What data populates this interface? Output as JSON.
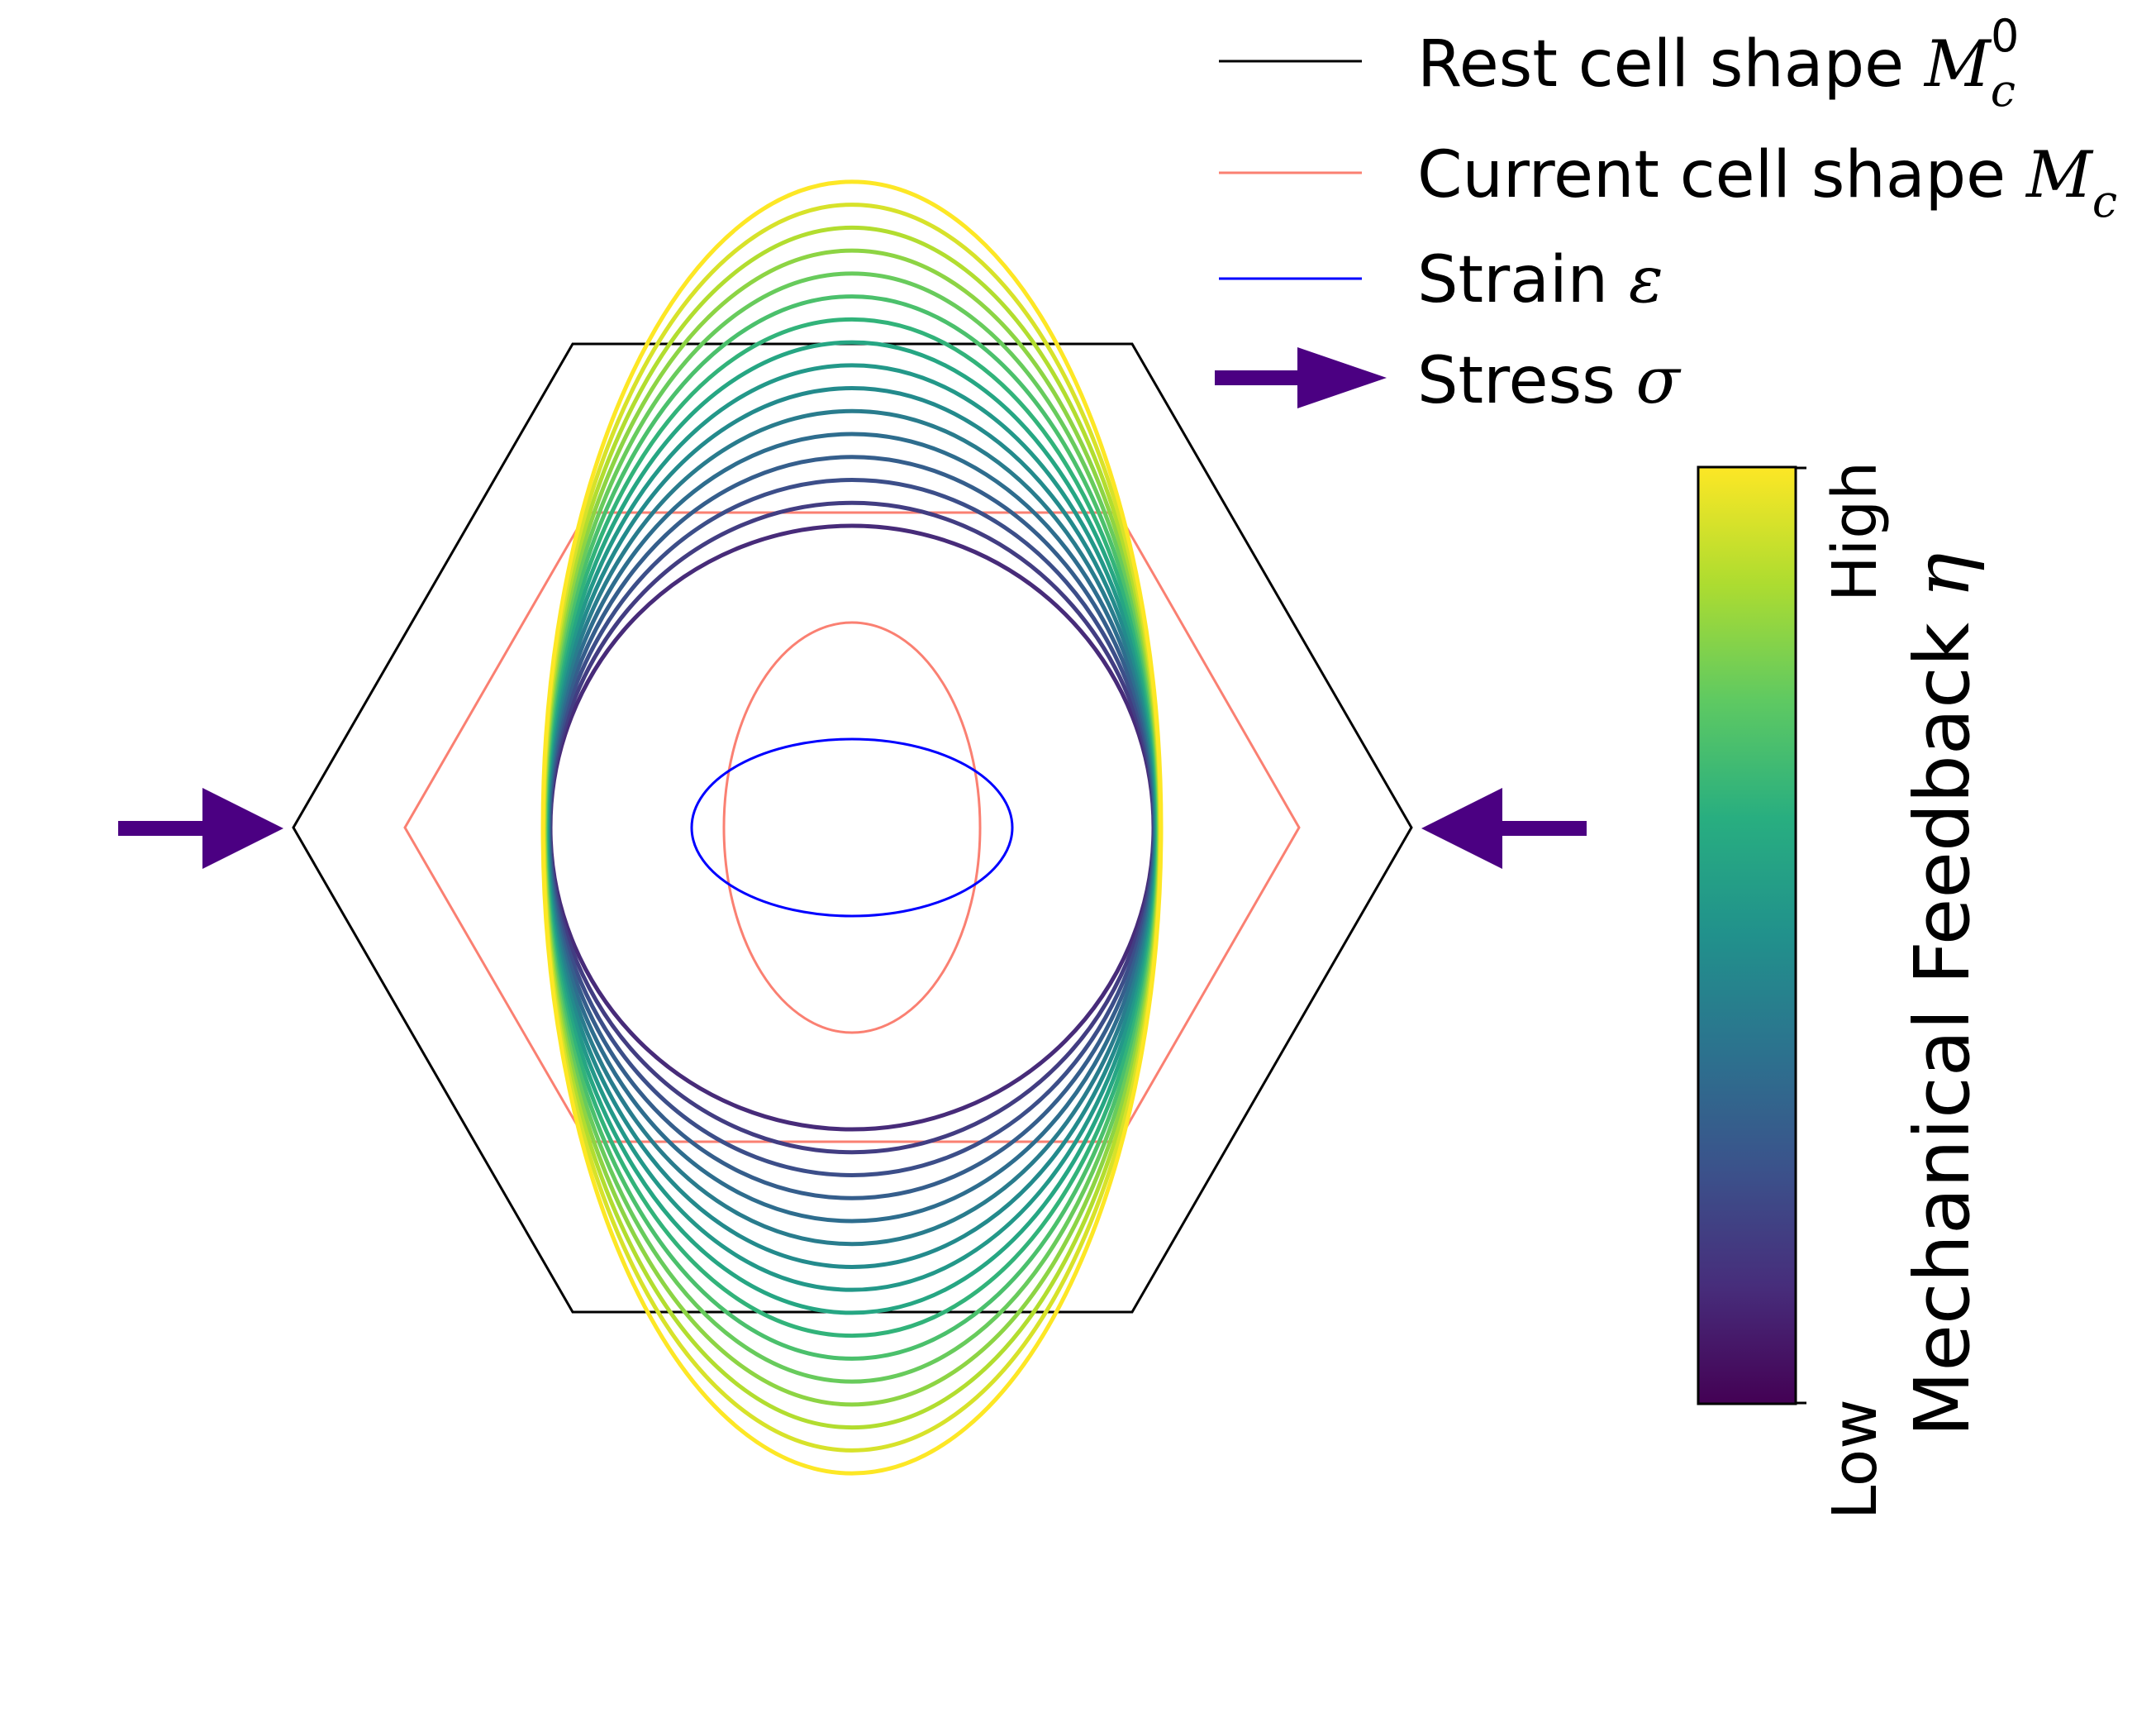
{
  "legend": {
    "rest": {
      "text": "Rest cell shape ",
      "symbol": "M",
      "sub": "c",
      "sup": "0",
      "color": "#000000"
    },
    "current": {
      "text": "Current cell shape ",
      "symbol": "M",
      "sub": "c",
      "color": "#fa8072"
    },
    "strain": {
      "text": "Strain ",
      "symbol": "ε",
      "color": "#0000ff"
    },
    "stress": {
      "text": "Stress ",
      "symbol": "σ",
      "color": "#4b0082"
    }
  },
  "colorbar": {
    "label": "Mechanical Feedback ",
    "label_symbol": "η",
    "high": "High",
    "low": "Low",
    "colormap": "viridis",
    "stops": [
      "#440154",
      "#472d7b",
      "#3b528b",
      "#2c728e",
      "#21918c",
      "#28ae80",
      "#5ec962",
      "#addc30",
      "#fde725"
    ]
  },
  "diagram": {
    "feedback_ellipse_count": 16,
    "feedback_scale_low": 1.0,
    "feedback_scale_high": 2.14
  }
}
